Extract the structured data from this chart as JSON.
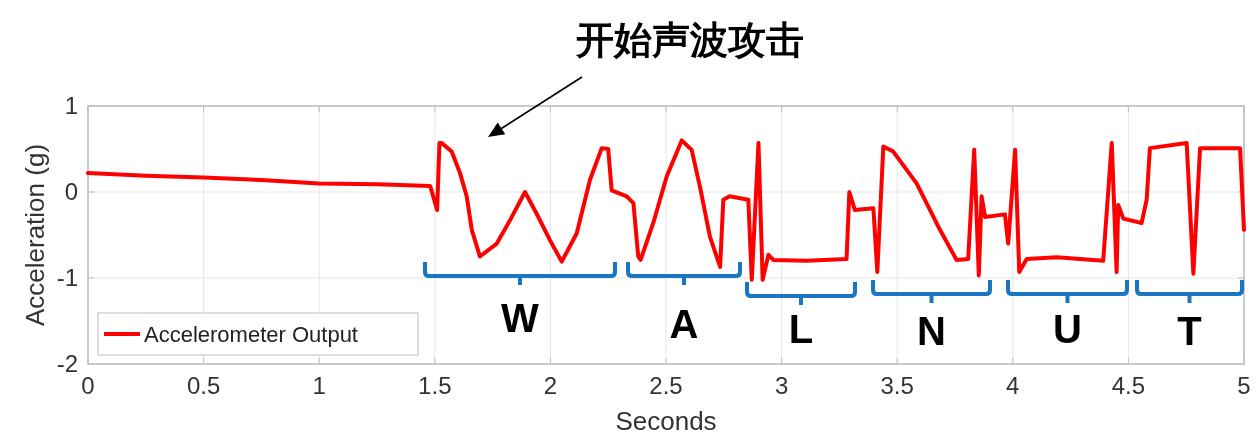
{
  "chart_data": {
    "type": "line",
    "xlabel": "Seconds",
    "ylabel": "Acceleration (g)",
    "xlim": [
      0,
      5
    ],
    "ylim": [
      -2,
      1
    ],
    "xticks": [
      0,
      0.5,
      1,
      1.5,
      2,
      2.5,
      3,
      3.5,
      4,
      4.5,
      5
    ],
    "yticks": [
      -2,
      -1,
      0,
      1
    ],
    "grid": true,
    "legend": "bottom left",
    "line_style": "solid",
    "marker": "none",
    "annotations": [
      "开始声波攻击",
      "W",
      "A",
      "L",
      "N",
      "U",
      "T"
    ],
    "series": [
      {
        "name": "Accelerometer Output",
        "color": "#ff0000",
        "x": [
          0,
          0.25,
          0.5,
          0.75,
          1.0,
          1.25,
          1.48,
          1.51,
          1.52,
          1.53,
          1.573,
          1.609,
          1.638,
          1.66,
          1.695,
          1.768,
          1.825,
          1.89,
          1.94,
          1.998,
          2.049,
          2.114,
          2.171,
          2.222,
          2.25,
          2.265,
          2.33,
          2.359,
          2.38,
          2.39,
          2.445,
          2.503,
          2.568,
          2.611,
          2.647,
          2.69,
          2.734,
          2.748,
          2.775,
          2.856,
          2.871,
          2.9,
          2.918,
          2.943,
          2.964,
          3.108,
          3.281,
          3.293,
          3.317,
          3.397,
          3.414,
          3.44,
          3.483,
          3.584,
          3.685,
          3.757,
          3.807,
          3.833,
          3.853,
          3.865,
          3.88,
          3.966,
          3.98,
          4.01,
          4.028,
          4.06,
          4.19,
          4.391,
          4.428,
          4.449,
          4.456,
          4.478,
          4.557,
          4.579,
          4.593,
          4.752,
          4.781,
          4.81,
          4.983,
          5.0
        ],
        "values": [
          0.22,
          0.19,
          0.17,
          0.14,
          0.1,
          0.09,
          0.07,
          -0.21,
          0.57,
          0.57,
          0.47,
          0.22,
          -0.05,
          -0.44,
          -0.75,
          -0.6,
          -0.33,
          0.0,
          -0.25,
          -0.56,
          -0.81,
          -0.48,
          0.14,
          0.51,
          0.5,
          0.02,
          -0.05,
          -0.13,
          -0.75,
          -0.79,
          -0.36,
          0.18,
          0.6,
          0.49,
          0.06,
          -0.52,
          -0.87,
          -0.09,
          -0.05,
          -0.09,
          -1.02,
          0.57,
          -1.02,
          -0.73,
          -0.79,
          -0.8,
          -0.78,
          0.0,
          -0.21,
          -0.19,
          -0.93,
          0.53,
          0.47,
          0.1,
          -0.44,
          -0.79,
          -0.78,
          0.49,
          -0.97,
          -0.05,
          -0.29,
          -0.26,
          -0.6,
          0.49,
          -0.93,
          -0.78,
          -0.76,
          -0.8,
          0.57,
          -0.93,
          -0.15,
          -0.31,
          -0.36,
          -0.09,
          0.51,
          0.57,
          -0.95,
          0.51,
          0.51,
          -0.44
        ]
      }
    ]
  }
}
